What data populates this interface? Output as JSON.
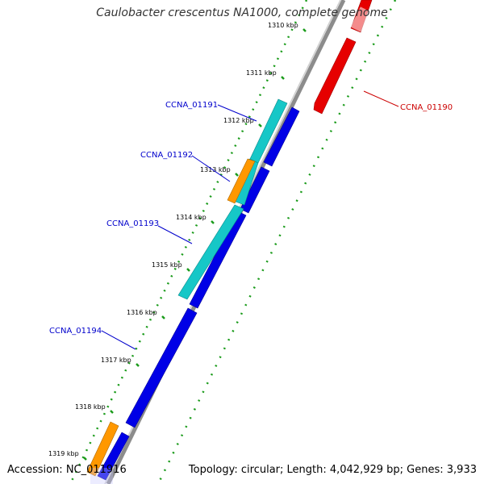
{
  "title": "Caulobacter crescentus NA1000, complete genome",
  "accession": "Accession: NC_011916",
  "summary": "Topology: circular; Length: 4,042,929 bp; Genes: 3,933",
  "colors": {
    "backbone": "#8c8c8c",
    "plus_cds": "#0000e6",
    "minus_cds": "#e60000",
    "rna": "#16c7c7",
    "other": "#ff9800",
    "gc_dots": "#1a9b1a",
    "label_left": "#0000cc",
    "label_right": "#cc0000"
  },
  "positions": [
    "1310 kbp",
    "1311 kbp",
    "1312 kbp",
    "1313 kbp",
    "1314 kbp",
    "1315 kbp",
    "1316 kbp",
    "1317 kbp",
    "1318 kbp",
    "1319 kbp"
  ],
  "gene_labels": [
    "CCNA_01191",
    "CCNA_01192",
    "CCNA_01193",
    "CCNA_01194",
    "CCNA_01190"
  ]
}
